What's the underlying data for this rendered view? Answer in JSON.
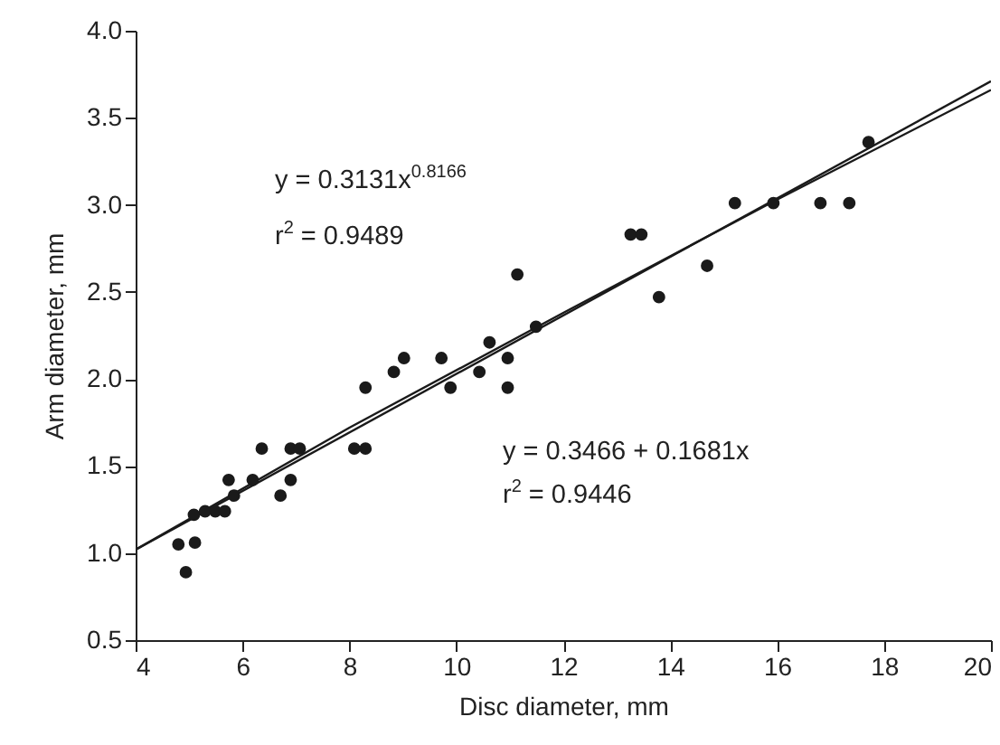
{
  "chart_data": {
    "type": "scatter",
    "xlabel": "Disc diameter, mm",
    "ylabel": "Arm diameter, mm",
    "xlim": [
      4,
      20
    ],
    "xticks": [
      4,
      6,
      8,
      10,
      12,
      14,
      16,
      18,
      20
    ],
    "ylim": [
      0.5,
      4.0
    ],
    "yticks": [
      {
        "value": 0.5,
        "label": "0.5"
      },
      {
        "value": 1,
        "label": "1.0"
      },
      {
        "value": 1.5,
        "label": "1.5"
      },
      {
        "value": 2,
        "label": "2.0"
      },
      {
        "value": 2.5,
        "label": "2.5"
      },
      {
        "value": 3,
        "label": "3.0"
      },
      {
        "value": 3.5,
        "label": "3.5"
      },
      {
        "value": 4,
        "label": "4.0"
      }
    ],
    "grid": false,
    "line_style": "solid",
    "series": [
      {
        "marker": "circle",
        "color": "#1a1a1a",
        "x": [
          4.8,
          4.94,
          5.11,
          5.09,
          5.3,
          5.49,
          5.67,
          5.74,
          5.84,
          6.19,
          6.36,
          6.71,
          6.9,
          6.9,
          7.07,
          8.09,
          8.3,
          8.3,
          8.83,
          9.02,
          9.72,
          9.89,
          10.43,
          10.62,
          10.96,
          10.96,
          11.14,
          11.49,
          13.26,
          13.46,
          13.79,
          14.69,
          15.21,
          15.93,
          16.81,
          17.35,
          17.71
        ],
        "values": [
          1.05,
          0.89,
          1.06,
          1.22,
          1.24,
          1.24,
          1.24,
          1.42,
          1.33,
          1.42,
          1.6,
          1.33,
          1.42,
          1.6,
          1.6,
          1.6,
          1.6,
          1.95,
          2.04,
          2.12,
          2.12,
          1.95,
          2.04,
          2.21,
          2.12,
          1.95,
          2.6,
          2.3,
          2.83,
          2.83,
          2.47,
          2.65,
          3.01,
          3.01,
          3.01,
          3.01,
          3.36
        ]
      },
      {
        "type": "line",
        "marker": "none",
        "color": "#1a1a1a",
        "x": [
          4,
          20
        ],
        "values": [
          1.02,
          3.71
        ]
      },
      {
        "type": "line",
        "marker": "none",
        "color": "#1a1a1a",
        "x": [
          4,
          8,
          12,
          16,
          20
        ],
        "values": [
          1.02,
          1.72,
          2.38,
          3.03,
          3.66
        ]
      }
    ],
    "annotations": [
      "y = 0.3131x$^{0.8166}$",
      "r$^{2}$ = 0.9489",
      "y = 0.3466 + 0.1681x",
      "r$^{2}$ = 0.9446"
    ]
  }
}
